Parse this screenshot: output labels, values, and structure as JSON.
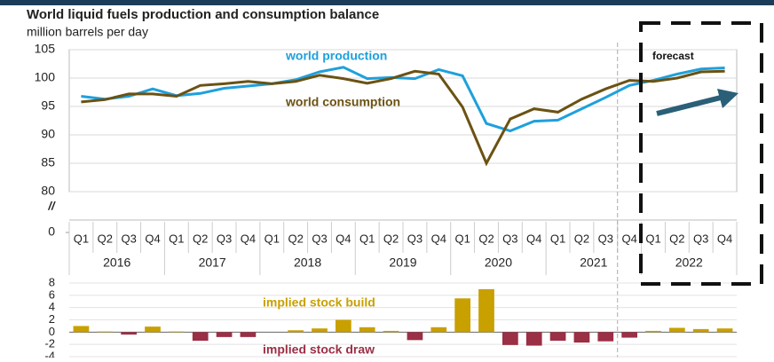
{
  "chart_data": [
    {
      "type": "line",
      "title": "World liquid fuels production and consumption balance",
      "subtitle": "million barrels per day",
      "categories": [
        "Q1",
        "Q2",
        "Q3",
        "Q4",
        "Q1",
        "Q2",
        "Q3",
        "Q4",
        "Q1",
        "Q2",
        "Q3",
        "Q4",
        "Q1",
        "Q2",
        "Q3",
        "Q4",
        "Q1",
        "Q2",
        "Q3",
        "Q4",
        "Q1",
        "Q2",
        "Q3",
        "Q4",
        "Q1",
        "Q2",
        "Q3",
        "Q4"
      ],
      "years": [
        "2016",
        "2017",
        "2018",
        "2019",
        "2020",
        "2021",
        "2022"
      ],
      "series": [
        {
          "name": "world production",
          "color": "#1ea0dc",
          "values": [
            96.8,
            96.3,
            96.8,
            98.1,
            96.9,
            97.3,
            98.2,
            98.6,
            99.0,
            99.7,
            101.1,
            101.9,
            99.9,
            100.1,
            99.9,
            101.5,
            100.4,
            92.0,
            90.7,
            92.4,
            92.6,
            94.6,
            96.6,
            98.7,
            99.6,
            100.7,
            101.6,
            101.8
          ]
        },
        {
          "name": "world consumption",
          "color": "#6b5213",
          "values": [
            95.8,
            96.2,
            97.2,
            97.2,
            96.8,
            98.7,
            99.0,
            99.4,
            99.0,
            99.4,
            100.5,
            99.9,
            99.1,
            99.9,
            101.2,
            100.7,
            94.9,
            85.0,
            92.8,
            94.6,
            94.0,
            96.3,
            98.1,
            99.6,
            99.4,
            100.0,
            101.1,
            101.2
          ]
        }
      ],
      "ylim": [
        0,
        105
      ],
      "axis_break": [
        0,
        80
      ],
      "axis_break_label": "//",
      "yticks": [
        0,
        80,
        85,
        90,
        95,
        100,
        105
      ],
      "annotation": "forecast",
      "grid": true
    },
    {
      "type": "bar",
      "values": [
        1.0,
        0.1,
        -0.4,
        0.9,
        0.1,
        -1.4,
        -0.8,
        -0.8,
        0.0,
        0.3,
        0.6,
        2.0,
        0.8,
        0.2,
        -1.3,
        0.8,
        5.5,
        7.0,
        -2.1,
        -2.2,
        -1.4,
        -1.7,
        -1.5,
        -0.9,
        0.2,
        0.7,
        0.5,
        0.6
      ],
      "positive_color": "#c8a000",
      "negative_color": "#9b2f45",
      "positive_label": "implied stock build",
      "negative_label": "implied stock draw",
      "ylim": [
        -4,
        8
      ],
      "yticks": [
        -4,
        -2,
        0,
        2,
        4,
        6,
        8
      ],
      "grid": true
    }
  ]
}
